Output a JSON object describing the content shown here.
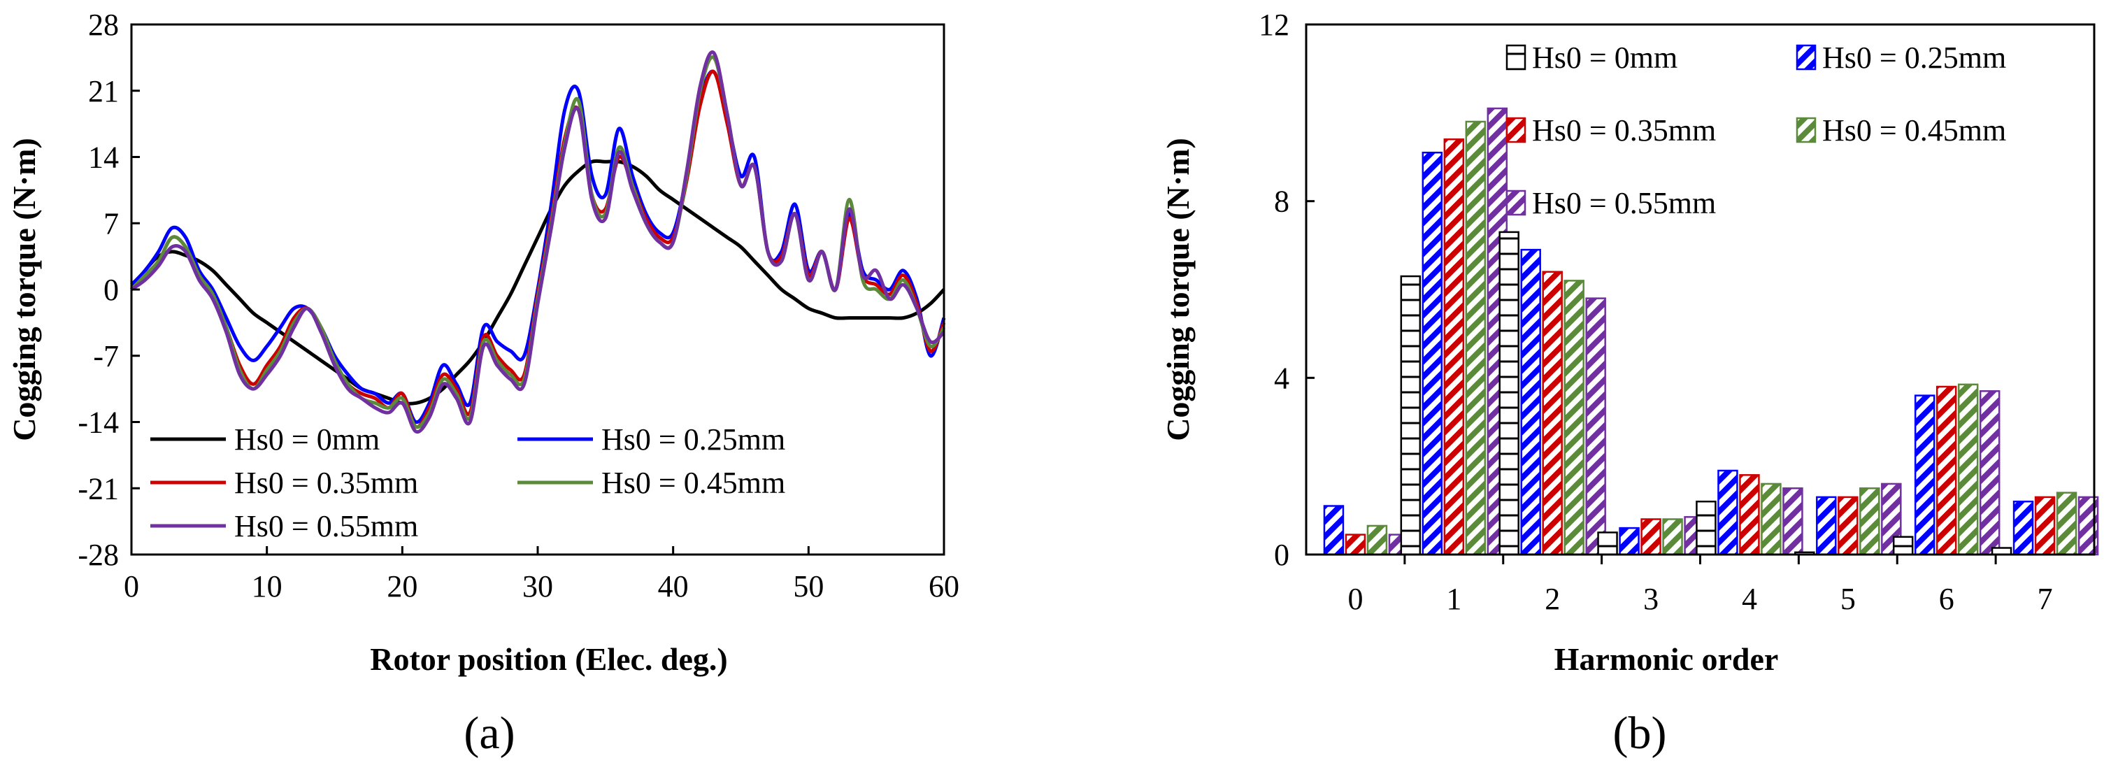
{
  "chart_data": [
    {
      "type": "line",
      "panel_label": "(a)",
      "xlabel": "Rotor position (Elec. deg.)",
      "ylabel": "Cogging torque (N·m)",
      "xlim": [
        0,
        60
      ],
      "ylim": [
        -28,
        28
      ],
      "xticks": [
        "0",
        "10",
        "20",
        "30",
        "40",
        "50",
        "60"
      ],
      "yticks": [
        "-28",
        "-21",
        "-14",
        "-7",
        "0",
        "7",
        "14",
        "21",
        "28"
      ],
      "x": [
        0,
        1,
        2,
        3,
        4,
        5,
        6,
        7,
        8,
        9,
        10,
        11,
        12,
        13,
        14,
        15,
        16,
        17,
        18,
        19,
        20,
        21,
        22,
        23,
        24,
        25,
        26,
        27,
        28,
        29,
        30,
        31,
        32,
        33,
        34,
        35,
        36,
        37,
        38,
        39,
        40,
        41,
        42,
        43,
        44,
        45,
        46,
        47,
        48,
        49,
        50,
        51,
        52,
        53,
        54,
        55,
        56,
        57,
        58,
        59,
        60
      ],
      "series": [
        {
          "name": "Hs0 = 0mm",
          "color": "#000000",
          "values": [
            0,
            2,
            3.5,
            4,
            3.6,
            3,
            2,
            0.5,
            -1,
            -2.5,
            -3.5,
            -4.5,
            -5.5,
            -6.5,
            -7.5,
            -8.5,
            -9.5,
            -10.5,
            -11,
            -11.5,
            -12,
            -12,
            -11.5,
            -10.5,
            -9,
            -7.5,
            -5.5,
            -3,
            -0.5,
            2.5,
            5.5,
            8.5,
            11,
            12.5,
            13.5,
            13.5,
            13.5,
            13,
            12,
            10.5,
            9.5,
            8.5,
            7.5,
            6.5,
            5.5,
            4.5,
            3,
            1.5,
            0,
            -1,
            -2,
            -2.5,
            -3,
            -3,
            -3,
            -3,
            -3,
            -3,
            -2.5,
            -1.5,
            0
          ]
        },
        {
          "name": "Hs0 = 0.25mm",
          "color": "#0000ff",
          "values": [
            0.5,
            2,
            4,
            6.5,
            5.5,
            2,
            0,
            -3,
            -6,
            -7.5,
            -6,
            -4,
            -2,
            -2,
            -4,
            -7,
            -9,
            -10.5,
            -11,
            -12,
            -11,
            -14,
            -12,
            -8,
            -10,
            -12,
            -4,
            -5.5,
            -6.5,
            -7,
            0,
            9,
            19,
            21,
            12,
            10,
            17,
            12,
            8,
            6,
            6,
            12,
            20,
            23,
            18,
            12,
            14,
            4,
            4,
            9,
            2,
            4,
            0,
            8,
            2,
            1,
            0,
            2,
            -1,
            -7,
            -3
          ]
        },
        {
          "name": "Hs0 = 0.35mm",
          "color": "#cc0000",
          "values": [
            0,
            1.5,
            3,
            5.5,
            4.5,
            1.5,
            -0.5,
            -4,
            -8,
            -10,
            -8,
            -6,
            -3,
            -2,
            -4,
            -7.5,
            -10,
            -11,
            -11.5,
            -12.5,
            -11,
            -14.5,
            -12.5,
            -9,
            -10.5,
            -13,
            -5,
            -7,
            -8.5,
            -9,
            -0.5,
            7.5,
            16,
            19,
            10,
            8.5,
            14,
            11,
            7.5,
            5.5,
            5.5,
            11.5,
            19.5,
            23,
            17.5,
            11,
            13,
            4,
            3.5,
            8,
            1.5,
            4,
            0,
            7.5,
            1.5,
            0.5,
            -0.5,
            1.5,
            -1.5,
            -6.5,
            -3.5
          ]
        },
        {
          "name": "Hs0 = 0.45mm",
          "color": "#5a8a3a",
          "values": [
            0,
            1.5,
            3,
            5.5,
            4.5,
            1.5,
            -0.5,
            -4,
            -8.5,
            -10.5,
            -8.5,
            -6.5,
            -3.5,
            -2,
            -4,
            -7.5,
            -10,
            -11.5,
            -12,
            -12.5,
            -11.5,
            -14.5,
            -13,
            -9.5,
            -11,
            -13.5,
            -5.5,
            -7.5,
            -9,
            -9.5,
            -1,
            7,
            15.5,
            20,
            10,
            8,
            15,
            11,
            7,
            5,
            5,
            12,
            21,
            24.5,
            18.5,
            11,
            13,
            4,
            3,
            8,
            1,
            4,
            0,
            9.5,
            1,
            0,
            -1,
            1,
            -2,
            -6,
            -4
          ]
        },
        {
          "name": "Hs0 = 0.55mm",
          "color": "#7030a0",
          "values": [
            0,
            1,
            2.5,
            4.5,
            4,
            1,
            -1,
            -4.5,
            -9,
            -10.5,
            -9,
            -7,
            -4,
            -2,
            -4.5,
            -8,
            -10.5,
            -11.5,
            -12.5,
            -13,
            -12,
            -15,
            -13.5,
            -10,
            -11.5,
            -14,
            -6,
            -8,
            -9.5,
            -10,
            -1.5,
            6.5,
            15,
            19,
            9.5,
            7.5,
            14.5,
            10.5,
            7,
            5,
            5,
            12.5,
            21.5,
            25,
            18.5,
            11,
            13,
            4,
            3,
            8,
            1,
            4,
            0,
            8.5,
            1.5,
            2,
            -1,
            0.5,
            -2,
            -5.5,
            -4.5
          ]
        }
      ]
    },
    {
      "type": "bar",
      "panel_label": "(b)",
      "xlabel": "Harmonic order",
      "ylabel": "Cogging torque (N·m)",
      "ylim": [
        0,
        12
      ],
      "yticks": [
        "0",
        "4",
        "8",
        "12"
      ],
      "categories": [
        "0",
        "1",
        "2",
        "3",
        "4",
        "5",
        "6",
        "7"
      ],
      "series": [
        {
          "name": "Hs0 = 0mm",
          "color": "#000000",
          "pattern": "horizontal-stripes",
          "values": [
            0,
            6.3,
            7.3,
            0.5,
            1.2,
            0.05,
            0.4,
            0.15
          ]
        },
        {
          "name": "Hs0 = 0.25mm",
          "color": "#0000ff",
          "pattern": "diagonal",
          "values": [
            1.1,
            9.1,
            6.9,
            0.6,
            1.9,
            1.3,
            3.6,
            1.2
          ]
        },
        {
          "name": "Hs0 = 0.35mm",
          "color": "#cc0000",
          "pattern": "diagonal",
          "values": [
            0.45,
            9.4,
            6.4,
            0.8,
            1.8,
            1.3,
            3.8,
            1.3
          ]
        },
        {
          "name": "Hs0 = 0.45mm",
          "color": "#5a8a3a",
          "pattern": "diagonal",
          "values": [
            0.65,
            9.8,
            6.2,
            0.8,
            1.6,
            1.5,
            3.85,
            1.4
          ]
        },
        {
          "name": "Hs0 = 0.55mm",
          "color": "#7030a0",
          "pattern": "diagonal",
          "values": [
            0.45,
            10.1,
            5.8,
            0.85,
            1.5,
            1.6,
            3.7,
            1.3
          ]
        }
      ]
    }
  ]
}
